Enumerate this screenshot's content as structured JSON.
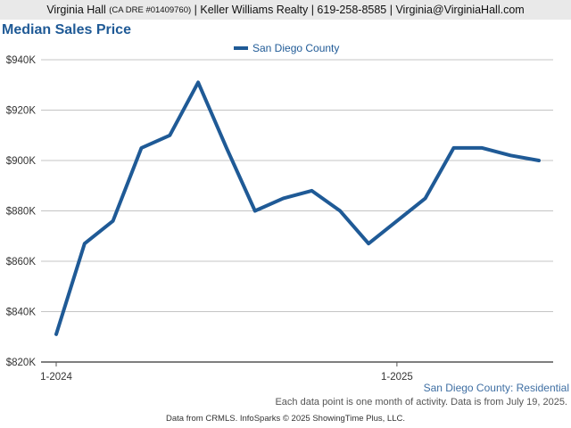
{
  "header": {
    "name": "Virginia Hall",
    "license": "(CA DRE #01409760)",
    "details": "| Keller Williams Realty | 619-258-8585 | Virginia@VirginiaHall.com"
  },
  "chart_data": {
    "type": "line",
    "title": "Median Sales Price",
    "xlabel": "",
    "ylabel": "",
    "x": [
      "1-2024",
      "2-2024",
      "3-2024",
      "4-2024",
      "5-2024",
      "6-2024",
      "7-2024",
      "8-2024",
      "9-2024",
      "10-2024",
      "11-2024",
      "12-2024",
      "1-2025",
      "2-2025",
      "3-2025",
      "4-2025",
      "5-2025",
      "6-2025"
    ],
    "x_tick_labels": [
      "1-2024",
      "1-2025"
    ],
    "series": [
      {
        "name": "San Diego County",
        "color": "#1f5a96",
        "values": [
          831000,
          867000,
          876000,
          905000,
          910000,
          931000,
          905000,
          880000,
          885000,
          888000,
          880000,
          867000,
          876000,
          885000,
          905000,
          905000,
          902000,
          900000
        ]
      }
    ],
    "ylim": [
      820000,
      940000
    ],
    "y_ticks": [
      820000,
      840000,
      860000,
      880000,
      900000,
      920000,
      940000
    ],
    "y_tick_labels": [
      "$820K",
      "$840K",
      "$860K",
      "$880K",
      "$900K",
      "$920K",
      "$940K"
    ],
    "grid": true,
    "legend": "top-center"
  },
  "footer": {
    "series_label": "San Diego County: Residential",
    "note": "Each data point is one month of activity. Data is from July 19, 2025.",
    "source": "Data from CRMLS. InfoSparks © 2025 ShowingTime Plus, LLC."
  }
}
